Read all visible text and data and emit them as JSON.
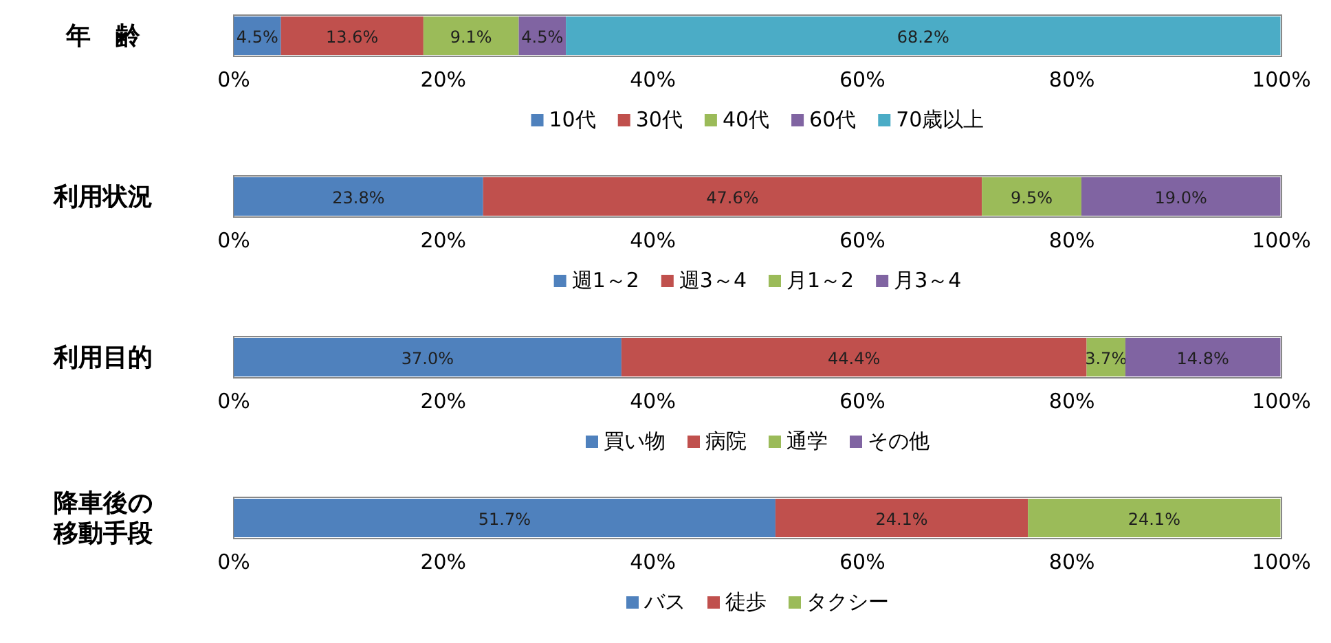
{
  "chart_data": [
    {
      "type": "bar",
      "orientation": "horizontal",
      "stacked": true,
      "categories": [
        "年　齢"
      ],
      "xlim": [
        0,
        100
      ],
      "xticks": [
        {
          "value": 0,
          "label": "0%"
        },
        {
          "value": 20,
          "label": "20%"
        },
        {
          "value": 40,
          "label": "40%"
        },
        {
          "value": 60,
          "label": "60%"
        },
        {
          "value": 80,
          "label": "80%"
        },
        {
          "value": 100,
          "label": "100%"
        }
      ],
      "legend": "bottom",
      "series": [
        {
          "name": "10代",
          "color": "#4f81bd",
          "values": [
            4.5
          ],
          "value_labels": [
            "4.5%"
          ]
        },
        {
          "name": "30代",
          "color": "#c0504d",
          "values": [
            13.6
          ],
          "value_labels": [
            "13.6%"
          ]
        },
        {
          "name": "40代",
          "color": "#9bbb59",
          "values": [
            9.1
          ],
          "value_labels": [
            "9.1%"
          ]
        },
        {
          "name": "60代",
          "color": "#8064a2",
          "values": [
            4.5
          ],
          "value_labels": [
            "4.5%"
          ]
        },
        {
          "name": "70歳以上",
          "color": "#4bacc6",
          "values": [
            68.2
          ],
          "value_labels": [
            "68.2%"
          ]
        }
      ]
    },
    {
      "type": "bar",
      "orientation": "horizontal",
      "stacked": true,
      "categories": [
        "利用状況"
      ],
      "xlim": [
        0,
        100
      ],
      "xticks": [
        {
          "value": 0,
          "label": "0%"
        },
        {
          "value": 20,
          "label": "20%"
        },
        {
          "value": 40,
          "label": "40%"
        },
        {
          "value": 60,
          "label": "60%"
        },
        {
          "value": 80,
          "label": "80%"
        },
        {
          "value": 100,
          "label": "100%"
        }
      ],
      "legend": "bottom",
      "series": [
        {
          "name": "週1～2",
          "color": "#4f81bd",
          "values": [
            23.8
          ],
          "value_labels": [
            "23.8%"
          ]
        },
        {
          "name": "週3～4",
          "color": "#c0504d",
          "values": [
            47.6
          ],
          "value_labels": [
            "47.6%"
          ]
        },
        {
          "name": "月1～2",
          "color": "#9bbb59",
          "values": [
            9.5
          ],
          "value_labels": [
            "9.5%"
          ]
        },
        {
          "name": "月3～4",
          "color": "#8064a2",
          "values": [
            19.0
          ],
          "value_labels": [
            "19.0%"
          ]
        }
      ]
    },
    {
      "type": "bar",
      "orientation": "horizontal",
      "stacked": true,
      "categories": [
        "利用目的"
      ],
      "xlim": [
        0,
        100
      ],
      "xticks": [
        {
          "value": 0,
          "label": "0%"
        },
        {
          "value": 20,
          "label": "20%"
        },
        {
          "value": 40,
          "label": "40%"
        },
        {
          "value": 60,
          "label": "60%"
        },
        {
          "value": 80,
          "label": "80%"
        },
        {
          "value": 100,
          "label": "100%"
        }
      ],
      "legend": "bottom",
      "series": [
        {
          "name": "買い物",
          "color": "#4f81bd",
          "values": [
            37.0
          ],
          "value_labels": [
            "37.0%"
          ]
        },
        {
          "name": "病院",
          "color": "#c0504d",
          "values": [
            44.4
          ],
          "value_labels": [
            "44.4%"
          ]
        },
        {
          "name": "通学",
          "color": "#9bbb59",
          "values": [
            3.7
          ],
          "value_labels": [
            "3.7%"
          ]
        },
        {
          "name": "その他",
          "color": "#8064a2",
          "values": [
            14.8
          ],
          "value_labels": [
            "14.8%"
          ]
        }
      ]
    },
    {
      "type": "bar",
      "orientation": "horizontal",
      "stacked": true,
      "categories": [
        "降車後の移動手段"
      ],
      "xlim": [
        0,
        100
      ],
      "xticks": [
        {
          "value": 0,
          "label": "0%"
        },
        {
          "value": 20,
          "label": "20%"
        },
        {
          "value": 40,
          "label": "40%"
        },
        {
          "value": 60,
          "label": "60%"
        },
        {
          "value": 80,
          "label": "80%"
        },
        {
          "value": 100,
          "label": "100%"
        }
      ],
      "legend": "bottom",
      "series": [
        {
          "name": "バス",
          "color": "#4f81bd",
          "values": [
            51.7
          ],
          "value_labels": [
            "51.7%"
          ]
        },
        {
          "name": "徒歩",
          "color": "#c0504d",
          "values": [
            24.1
          ],
          "value_labels": [
            "24.1%"
          ]
        },
        {
          "name": "タクシー",
          "color": "#9bbb59",
          "values": [
            24.1
          ],
          "value_labels": [
            "24.1%"
          ]
        }
      ]
    }
  ]
}
